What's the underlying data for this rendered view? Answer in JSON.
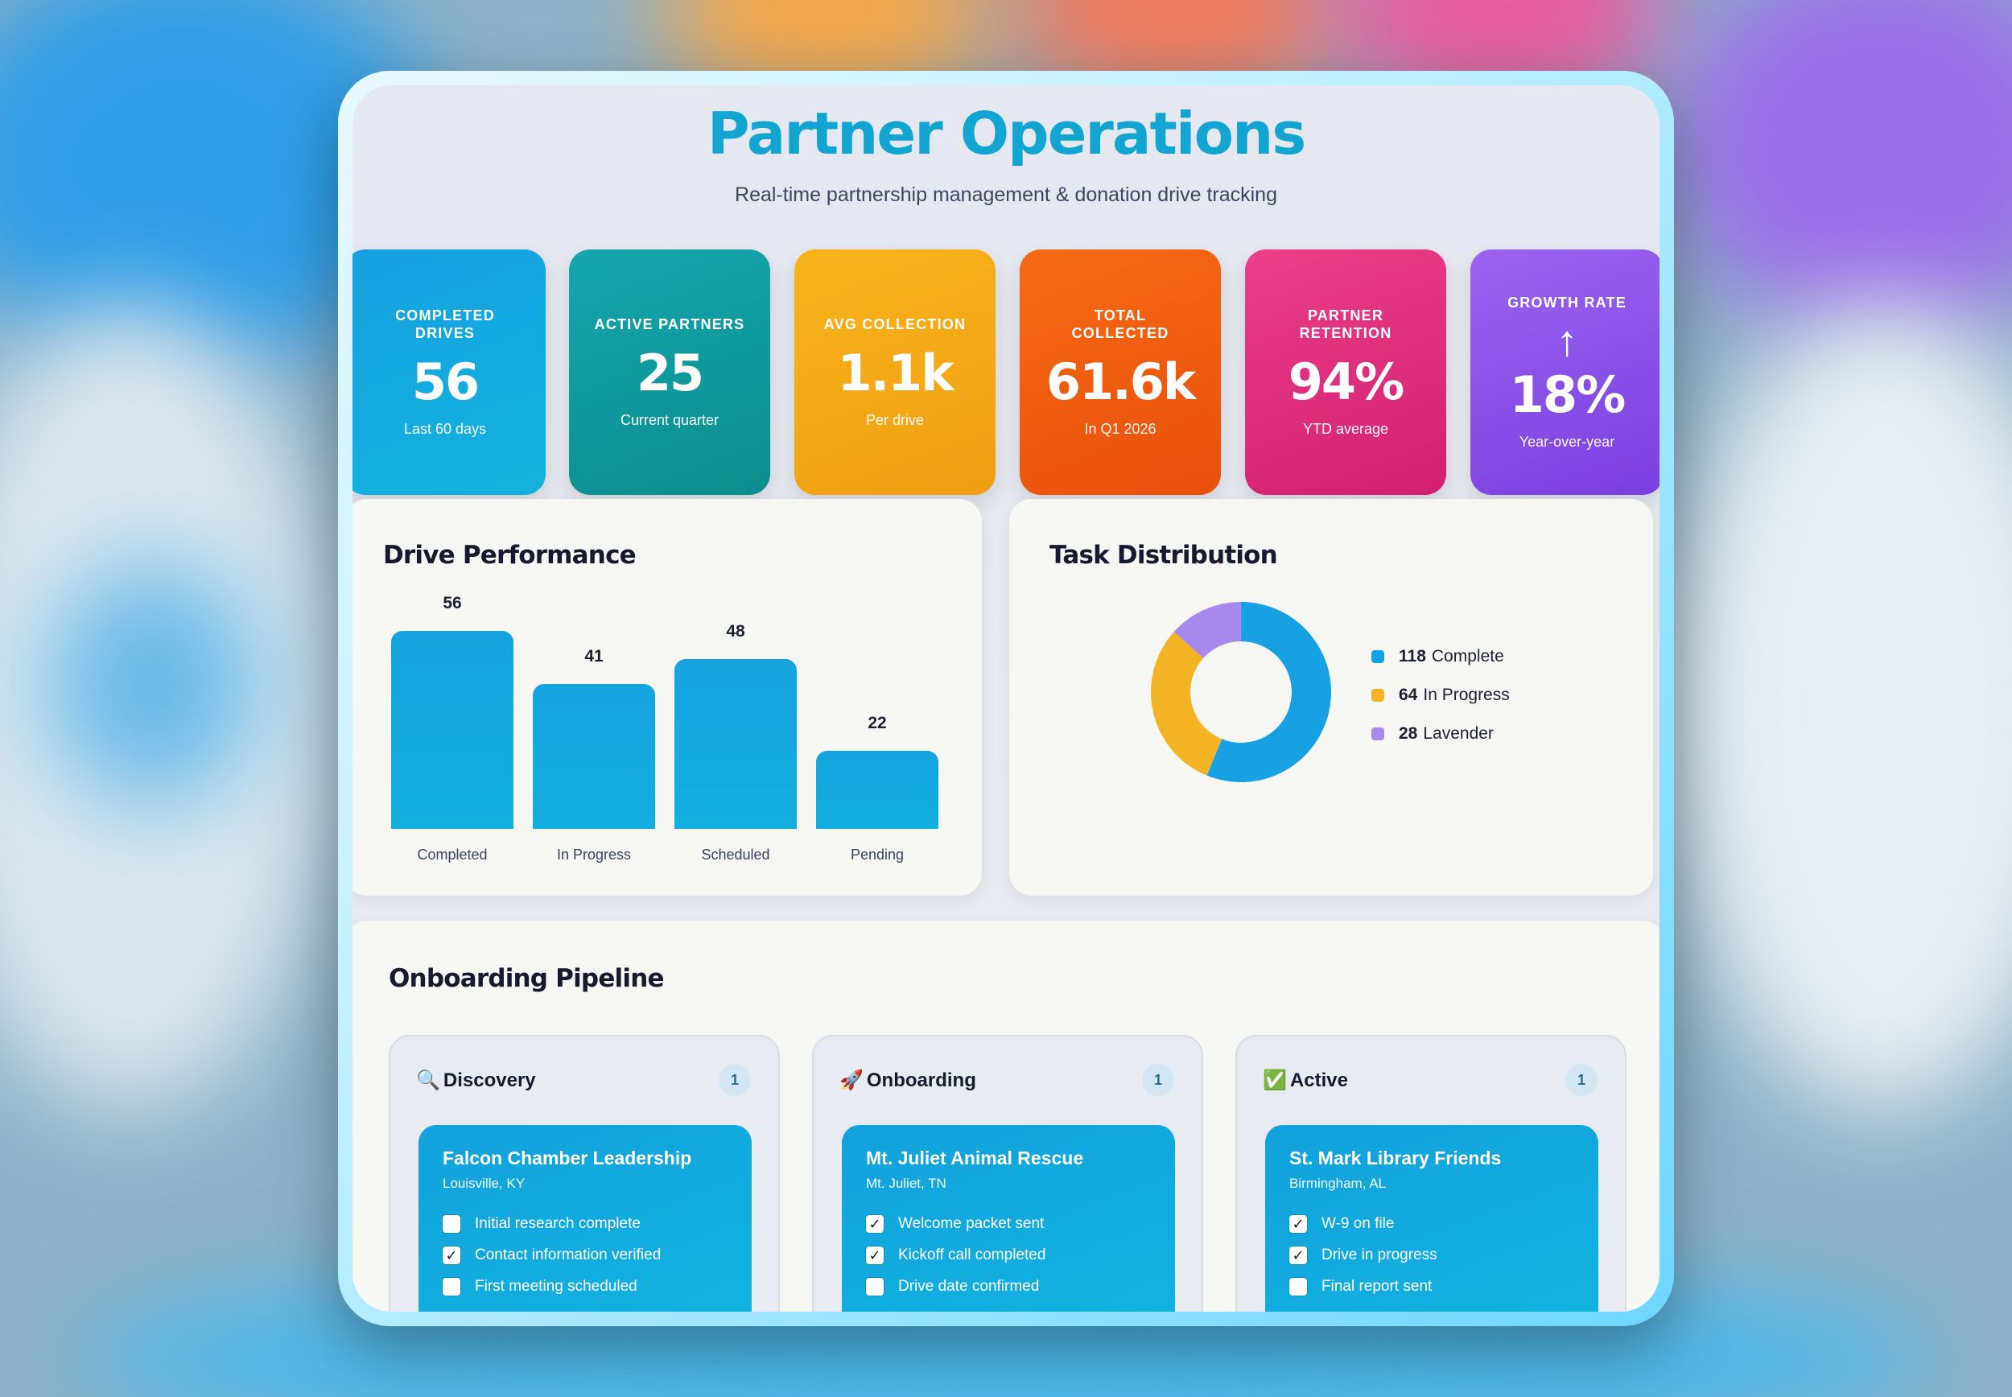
{
  "header": {
    "title": "Partner Operations",
    "subtitle": "Real-time partnership management & donation drive tracking"
  },
  "kpis": [
    {
      "label": "COMPLETED DRIVES",
      "value": "56",
      "sub": "Last 60 days",
      "color": "#16a0e2"
    },
    {
      "label": "ACTIVE PARTNERS",
      "value": "25",
      "sub": "Current quarter",
      "color": "#14a6ad"
    },
    {
      "label": "AVG COLLECTION",
      "value": "1.1k",
      "sub": "Per drive",
      "color": "#f8b31c"
    },
    {
      "label": "TOTAL COLLECTED",
      "value": "61.6k",
      "sub": "In Q1 2026",
      "color": "#f66a14"
    },
    {
      "label": "PARTNER RETENTION",
      "value": "94%",
      "sub": "YTD average",
      "color": "#ea3f8a"
    },
    {
      "label": "GROWTH RATE",
      "arrow": "↑",
      "value": "18%",
      "sub": "Year-over-year",
      "color": "#9a64f0"
    }
  ],
  "performance": {
    "title": "Drive Performance",
    "chart_data": {
      "type": "bar",
      "categories": [
        "Completed",
        "In Progress",
        "Scheduled",
        "Pending"
      ],
      "values": [
        56,
        41,
        48,
        22
      ],
      "ylim": [
        0,
        56
      ]
    }
  },
  "distribution": {
    "title": "Task Distribution",
    "chart_data": {
      "type": "pie",
      "donut": true,
      "slices": [
        {
          "value": 118,
          "label": "Complete",
          "color": "#17a1e2"
        },
        {
          "value": 64,
          "label": "In Progress",
          "color": "#f2b424"
        },
        {
          "value": 28,
          "label": "Lavender",
          "color": "#a889ee"
        }
      ]
    }
  },
  "pipeline": {
    "title": "Onboarding Pipeline",
    "columns": [
      {
        "emoji": "🔍",
        "label": "Discovery",
        "count": "1",
        "card": {
          "name": "Falcon Chamber Leadership",
          "location": "Louisville, KY",
          "tasks": [
            {
              "text": "Initial research complete",
              "done": false
            },
            {
              "text": "Contact information verified",
              "done": true
            },
            {
              "text": "First meeting scheduled",
              "done": false
            }
          ]
        }
      },
      {
        "emoji": "🚀",
        "label": "Onboarding",
        "count": "1",
        "card": {
          "name": "Mt. Juliet Animal Rescue",
          "location": "Mt. Juliet, TN",
          "tasks": [
            {
              "text": "Welcome packet sent",
              "done": true
            },
            {
              "text": "Kickoff call completed",
              "done": true
            },
            {
              "text": "Drive date confirmed",
              "done": false
            }
          ]
        }
      },
      {
        "emoji": "✅",
        "label": "Active",
        "count": "1",
        "card": {
          "name": "St. Mark Library Friends",
          "location": "Birmingham, AL",
          "tasks": [
            {
              "text": "W-9 on file",
              "done": true
            },
            {
              "text": "Drive in progress",
              "done": true
            },
            {
              "text": "Final report sent",
              "done": false
            }
          ]
        }
      }
    ]
  }
}
